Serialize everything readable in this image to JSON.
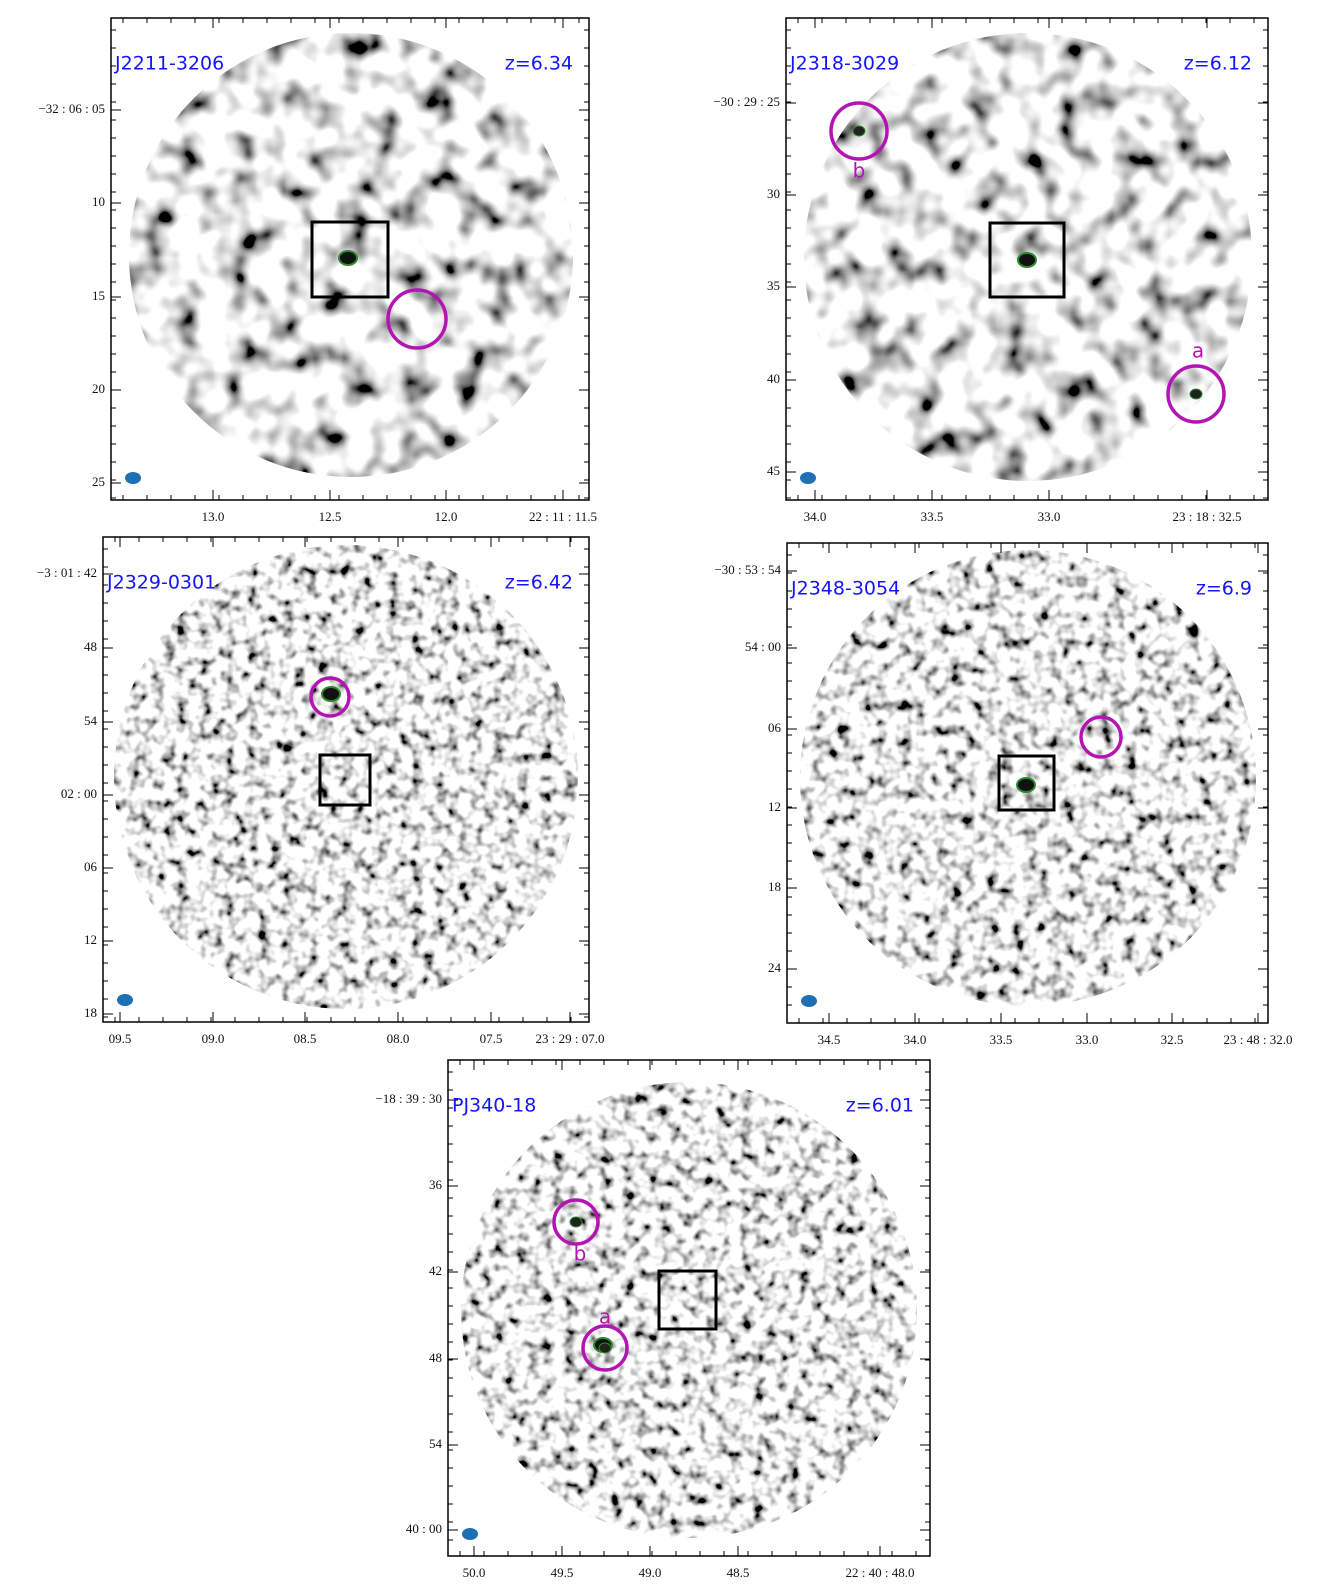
{
  "panels": [
    {
      "name": "J2211-3206",
      "redshift": "z=6.34",
      "yticks": [
        "−32 : 06 : 05",
        "10",
        "15",
        "20",
        "25"
      ],
      "xticks": [
        "13.0",
        "12.5",
        "12.0",
        "22 : 11 : 11.5"
      ]
    },
    {
      "name": "J2318-3029",
      "redshift": "z=6.12",
      "yticks": [
        "−30 : 29 : 25",
        "30",
        "35",
        "40",
        "45"
      ],
      "xticks": [
        "34.0",
        "33.5",
        "33.0",
        "23 : 18 : 32.5"
      ],
      "annotations": [
        "b",
        "a"
      ]
    },
    {
      "name": "J2329-0301",
      "redshift": "z=6.42",
      "yticks": [
        "−3 : 01 : 42",
        "48",
        "54",
        "02 : 00",
        "06",
        "12",
        "18"
      ],
      "xticks": [
        "09.5",
        "09.0",
        "08.5",
        "08.0",
        "07.5",
        "23 : 29 : 07.0"
      ]
    },
    {
      "name": "J2348-3054",
      "redshift": "z=6.9",
      "yticks": [
        "−30 : 53 : 54",
        "54 : 00",
        "06",
        "12",
        "18",
        "24"
      ],
      "xticks": [
        "34.5",
        "34.0",
        "33.5",
        "33.0",
        "32.5",
        "23 : 48 : 32.0"
      ]
    },
    {
      "name": "PJ340-18",
      "redshift": "z=6.01",
      "yticks": [
        "−18 : 39 : 30",
        "36",
        "42",
        "48",
        "54",
        "40 : 00"
      ],
      "xticks": [
        "50.0",
        "49.5",
        "49.0",
        "48.5",
        "22 : 40 : 48.0"
      ],
      "annotations": [
        "b",
        "a"
      ]
    }
  ]
}
